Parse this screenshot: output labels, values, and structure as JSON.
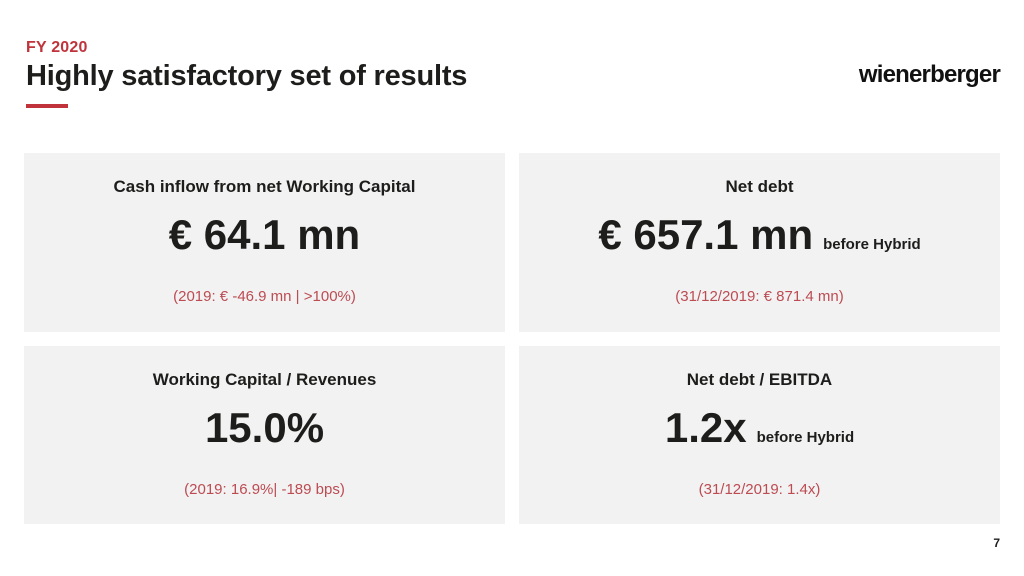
{
  "slide": {
    "eyebrow": "FY 2020",
    "title": "Highly satisfactory set of results",
    "logo": "wienerberger",
    "page_number": "7",
    "colors": {
      "accent_red": "#C0333B",
      "note_red": "#BC4B52",
      "card_background": "#F2F2F2",
      "text": "#1D1D1B"
    }
  },
  "cards": [
    {
      "title": "Cash inflow from net Working Capital",
      "value": "€ 64.1 mn",
      "suffix": "",
      "note": "(2019: € -46.9 mn | >100%)"
    },
    {
      "title": "Net debt",
      "value": "€ 657.1 mn",
      "suffix": "before Hybrid",
      "note": "(31/12/2019: € 871.4 mn)"
    },
    {
      "title": "Working Capital / Revenues",
      "value": "15.0%",
      "suffix": "",
      "note": "(2019: 16.9%| -189 bps)"
    },
    {
      "title": "Net debt / EBITDA",
      "value": "1.2x",
      "suffix": "before Hybrid",
      "note": "(31/12/2019: 1.4x)"
    }
  ]
}
